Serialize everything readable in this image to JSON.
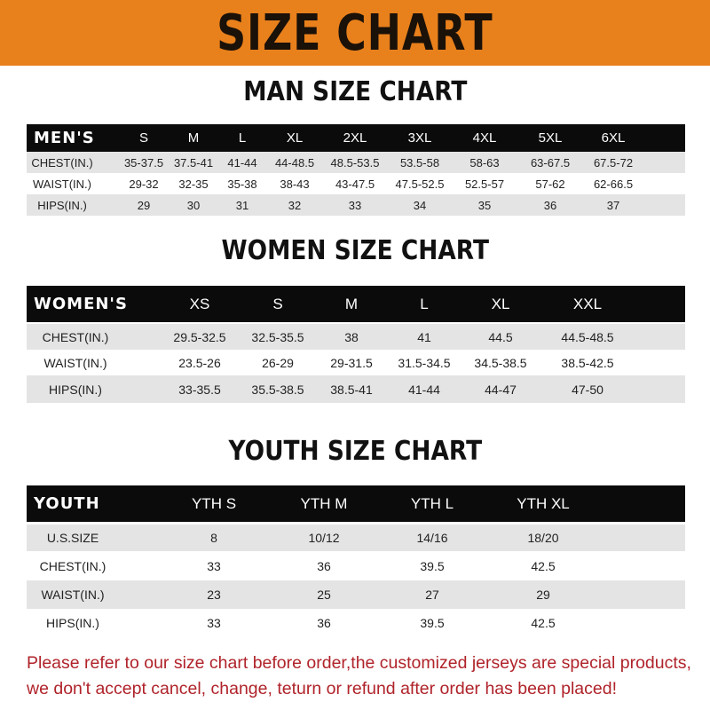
{
  "banner_title": "SIZE CHART",
  "colors": {
    "banner": "#e8801c",
    "header_row": "#0b0b0b",
    "stripe": "#e4e4e4",
    "notice": "#b0232a"
  },
  "men": {
    "title": "MAN SIZE CHART",
    "header": [
      "MEN'S",
      "S",
      "M",
      "L",
      "XL",
      "2XL",
      "3XL",
      "4XL",
      "5XL",
      "6XL"
    ],
    "rows": [
      [
        "CHEST(IN.)",
        "35-37.5",
        "37.5-41",
        "41-44",
        "44-48.5",
        "48.5-53.5",
        "53.5-58",
        "58-63",
        "63-67.5",
        "67.5-72"
      ],
      [
        "WAIST(IN.)",
        "29-32",
        "32-35",
        "35-38",
        "38-43",
        "43-47.5",
        "47.5-52.5",
        "52.5-57",
        "57-62",
        "62-66.5"
      ],
      [
        "HIPS(IN.)",
        "29",
        "30",
        "31",
        "32",
        "33",
        "34",
        "35",
        "36",
        "37"
      ]
    ]
  },
  "women": {
    "title": "WOMEN SIZE CHART",
    "header": [
      "WOMEN'S",
      "XS",
      "S",
      "M",
      "L",
      "XL",
      "XXL"
    ],
    "rows": [
      [
        "CHEST(IN.)",
        "29.5-32.5",
        "32.5-35.5",
        "38",
        "41",
        "44.5",
        "44.5-48.5"
      ],
      [
        "WAIST(IN.)",
        "23.5-26",
        "26-29",
        "29-31.5",
        "31.5-34.5",
        "34.5-38.5",
        "38.5-42.5"
      ],
      [
        "HIPS(IN.)",
        "33-35.5",
        "35.5-38.5",
        "38.5-41",
        "41-44",
        "44-47",
        "47-50"
      ]
    ]
  },
  "youth": {
    "title": "YOUTH SIZE CHART",
    "header": [
      "YOUTH",
      "YTH S",
      "YTH M",
      "YTH L",
      "YTH XL"
    ],
    "rows": [
      [
        "U.S.SIZE",
        "8",
        "10/12",
        "14/16",
        "18/20"
      ],
      [
        "CHEST(IN.)",
        "33",
        "36",
        "39.5",
        "42.5"
      ],
      [
        "WAIST(IN.)",
        "23",
        "25",
        "27",
        "29"
      ],
      [
        "HIPS(IN.)",
        "33",
        "36",
        "39.5",
        "42.5"
      ]
    ]
  },
  "notice": {
    "line1": "Please refer to our size chart before order,the customized jerseys are special products,",
    "line2": "we don't accept cancel, change, teturn or refund after order has been placed!"
  }
}
